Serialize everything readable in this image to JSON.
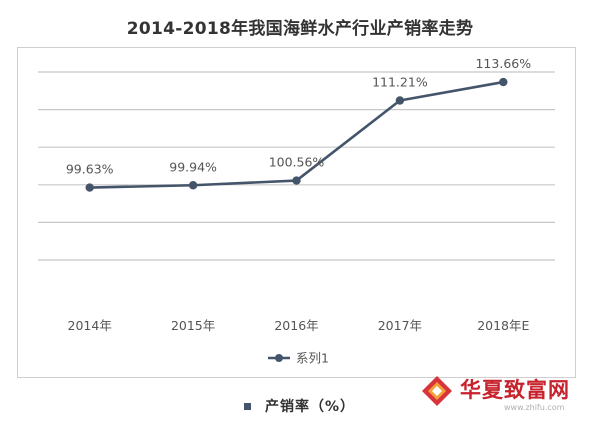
{
  "title": "2014-2018年我国海鲜水产行业产销率走势",
  "chart_data": {
    "type": "line",
    "title": "2014-2018年我国海鲜水产行业产销率走势",
    "categories": [
      "2014年",
      "2015年",
      "2016年",
      "2017年",
      "2018年E"
    ],
    "series": [
      {
        "name": "系列1",
        "values": [
          99.63,
          99.94,
          100.56,
          111.21,
          113.66
        ],
        "labels": [
          "99.63%",
          "99.94%",
          "100.56%",
          "111.21%",
          "113.66%"
        ]
      }
    ],
    "ylim": [
      90,
      115
    ],
    "grid": true,
    "legend_position": "bottom",
    "colors": {
      "series": "#44546a",
      "grid": "#c8c8c8"
    }
  },
  "footer_legend": {
    "label": "产销率（%）"
  },
  "watermark": {
    "name": "华夏致富网",
    "url": "www.zhifu.com"
  }
}
